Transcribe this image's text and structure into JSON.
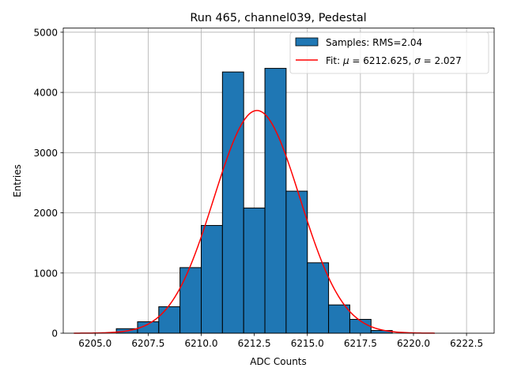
{
  "chart_data": {
    "type": "bar",
    "title": "Run 465, channel039, Pedestal",
    "xlabel": "ADC Counts",
    "ylabel": "Entries",
    "xlim": [
      6203.5,
      6223.8
    ],
    "ylim": [
      0,
      5070
    ],
    "grid": true,
    "legend_position": "top-right",
    "x_ticks": [
      6205.0,
      6207.5,
      6210.0,
      6212.5,
      6215.0,
      6217.5,
      6220.0,
      6222.5
    ],
    "x_tick_labels": [
      "6205.0",
      "6207.5",
      "6210.0",
      "6212.5",
      "6215.0",
      "6217.5",
      "6220.0",
      "6222.5"
    ],
    "y_ticks": [
      0,
      1000,
      2000,
      3000,
      4000,
      5000
    ],
    "y_tick_labels": [
      "0",
      "1000",
      "2000",
      "3000",
      "4000",
      "5000"
    ],
    "series": [
      {
        "name": "Samples: RMS=2.04",
        "kind": "histogram",
        "color": "#1f77b4",
        "edge_color": "#000000",
        "bins": [
          {
            "x0": 6206,
            "x1": 6207,
            "value": 75
          },
          {
            "x0": 6207,
            "x1": 6208,
            "value": 190
          },
          {
            "x0": 6208,
            "x1": 6209,
            "value": 440
          },
          {
            "x0": 6209,
            "x1": 6210,
            "value": 1090
          },
          {
            "x0": 6210,
            "x1": 6211,
            "value": 1790
          },
          {
            "x0": 6211,
            "x1": 6212,
            "value": 4340
          },
          {
            "x0": 6212,
            "x1": 6213,
            "value": 2080
          },
          {
            "x0": 6213,
            "x1": 6214,
            "value": 4400
          },
          {
            "x0": 6214,
            "x1": 6215,
            "value": 2360
          },
          {
            "x0": 6215,
            "x1": 6216,
            "value": 1170
          },
          {
            "x0": 6216,
            "x1": 6217,
            "value": 470
          },
          {
            "x0": 6217,
            "x1": 6218,
            "value": 230
          },
          {
            "x0": 6218,
            "x1": 6219,
            "value": 45
          }
        ]
      },
      {
        "name_prefix": "Fit: ",
        "name_mu_symbol": "μ",
        "name_mu_value": " = 6212.625, ",
        "name_sigma_symbol": "σ",
        "name_sigma_value": " = 2.027",
        "kind": "gaussian_fit",
        "color": "#ff0000",
        "mu": 6212.625,
        "sigma": 2.027,
        "amplitude": 3700,
        "x_range": [
          6204,
          6221
        ]
      }
    ]
  }
}
